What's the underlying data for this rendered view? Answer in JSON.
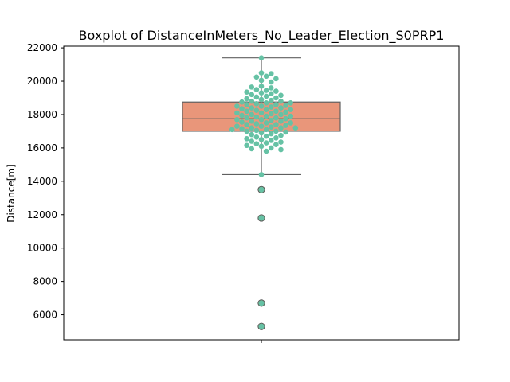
{
  "chart_data": {
    "type": "box",
    "title": "Boxplot of DistanceInMeters_No_Leader_Election_S0PRP1",
    "xlabel": "",
    "ylabel": "Distance[m]",
    "ylim": [
      4500,
      22100
    ],
    "yticks": [
      "6000",
      "8000",
      "10000",
      "12000",
      "14000",
      "16000",
      "18000",
      "20000",
      "22000"
    ],
    "grid": false,
    "box": {
      "q1": 17000,
      "median": 17750,
      "q3": 18750,
      "whisker_low": 14400,
      "whisker_high": 21400,
      "outliers": [
        13500,
        11800,
        6700,
        5300
      ],
      "color": "#e9967a"
    },
    "points": {
      "color": "#66c2a5",
      "values": [
        21400,
        20500,
        20450,
        20300,
        20250,
        20150,
        20050,
        19950,
        19700,
        19650,
        19600,
        19500,
        19450,
        19400,
        19350,
        19300,
        19250,
        19200,
        19150,
        19100,
        19050,
        19000,
        18950,
        18900,
        18850,
        18800,
        18800,
        18750,
        18700,
        18700,
        18650,
        18600,
        18600,
        18550,
        18500,
        18500,
        18450,
        18400,
        18400,
        18350,
        18300,
        18300,
        18250,
        18200,
        18200,
        18150,
        18100,
        18100,
        18050,
        18000,
        18000,
        17950,
        17900,
        17900,
        17850,
        17800,
        17800,
        17750,
        17700,
        17700,
        17650,
        17600,
        17600,
        17550,
        17500,
        17500,
        17450,
        17400,
        17400,
        17350,
        17300,
        17300,
        17250,
        17200,
        17200,
        17200,
        17150,
        17100,
        17100,
        17050,
        17000,
        17000,
        16950,
        16900,
        16850,
        16800,
        16750,
        16700,
        16650,
        16600,
        16550,
        16500,
        16450,
        16400,
        16350,
        16300,
        16250,
        16200,
        16150,
        16100,
        16000,
        15950,
        15900,
        15800,
        14400,
        13500,
        11800,
        6700,
        5300
      ]
    }
  }
}
